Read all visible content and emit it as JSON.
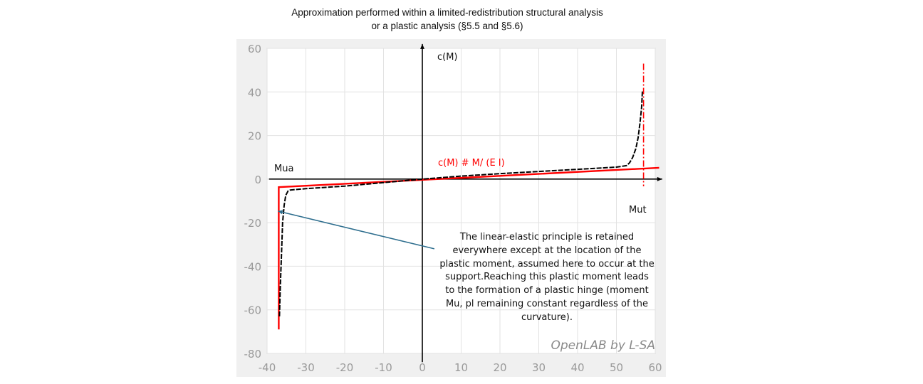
{
  "chart_data": {
    "type": "line",
    "title": [
      "Approximation performed within a limited-redistribution structural analysis",
      "or a plastic analysis (§5.5 and §5.6)"
    ],
    "xlim": [
      -40,
      60
    ],
    "ylim": [
      -80,
      60
    ],
    "xticks": [
      -40,
      -30,
      -20,
      -10,
      0,
      10,
      20,
      30,
      40,
      50,
      60
    ],
    "yticks": [
      60,
      40,
      20,
      0,
      -20,
      -40,
      -60,
      -80
    ],
    "grid": true,
    "series": [
      {
        "name": "c(M) # M/ (E I)",
        "style": "solid",
        "color": "#ff0000",
        "x": [
          -37,
          -37,
          61
        ],
        "y": [
          -69,
          -3.7,
          5.2
        ]
      },
      {
        "style": "dashed",
        "color": "#000000",
        "x": [
          -36.8,
          -36.6,
          -36.3,
          -36,
          -35.6,
          -35.2,
          -34.6,
          -34,
          -30,
          -20,
          -10,
          0,
          10,
          20,
          30,
          40,
          50,
          52.6,
          53.4,
          54.2,
          55,
          55.6,
          56.1,
          56.5,
          56.7
        ],
        "y": [
          -63,
          -50,
          -35,
          -20,
          -12,
          -7.5,
          -5.5,
          -5,
          -4.4,
          -3.2,
          -1.6,
          0,
          1.4,
          2.5,
          3.5,
          4.5,
          5.5,
          6.2,
          7.5,
          10,
          14,
          19,
          26,
          33,
          40.4
        ]
      },
      {
        "style": "dash-dot",
        "color": "#ff0000",
        "x": [
          57,
          57
        ],
        "y": [
          53,
          -3.3
        ]
      }
    ],
    "axis_labels": {
      "y_axis": "c(M)",
      "left_moment": "Mua",
      "right_moment": "Mut",
      "red_line": "c(M) # M/ (E I)"
    },
    "annotation": {
      "lines": [
        "The linear-elastic principle is retained",
        "everywhere except at the location of the",
        "plastic moment, assumed here to occur at the",
        "support.Reaching this plastic moment leads",
        "to the formation of a plastic hinge (moment",
        "Mu, pl remaining constant regardless of the",
        "curvature)."
      ],
      "arrow_from": [
        3.1,
        -32
      ],
      "arrow_to": [
        -37.2,
        -14.7
      ],
      "arrow_color": "#2e6e8e"
    },
    "watermark": "OpenLAB by L-SA"
  }
}
